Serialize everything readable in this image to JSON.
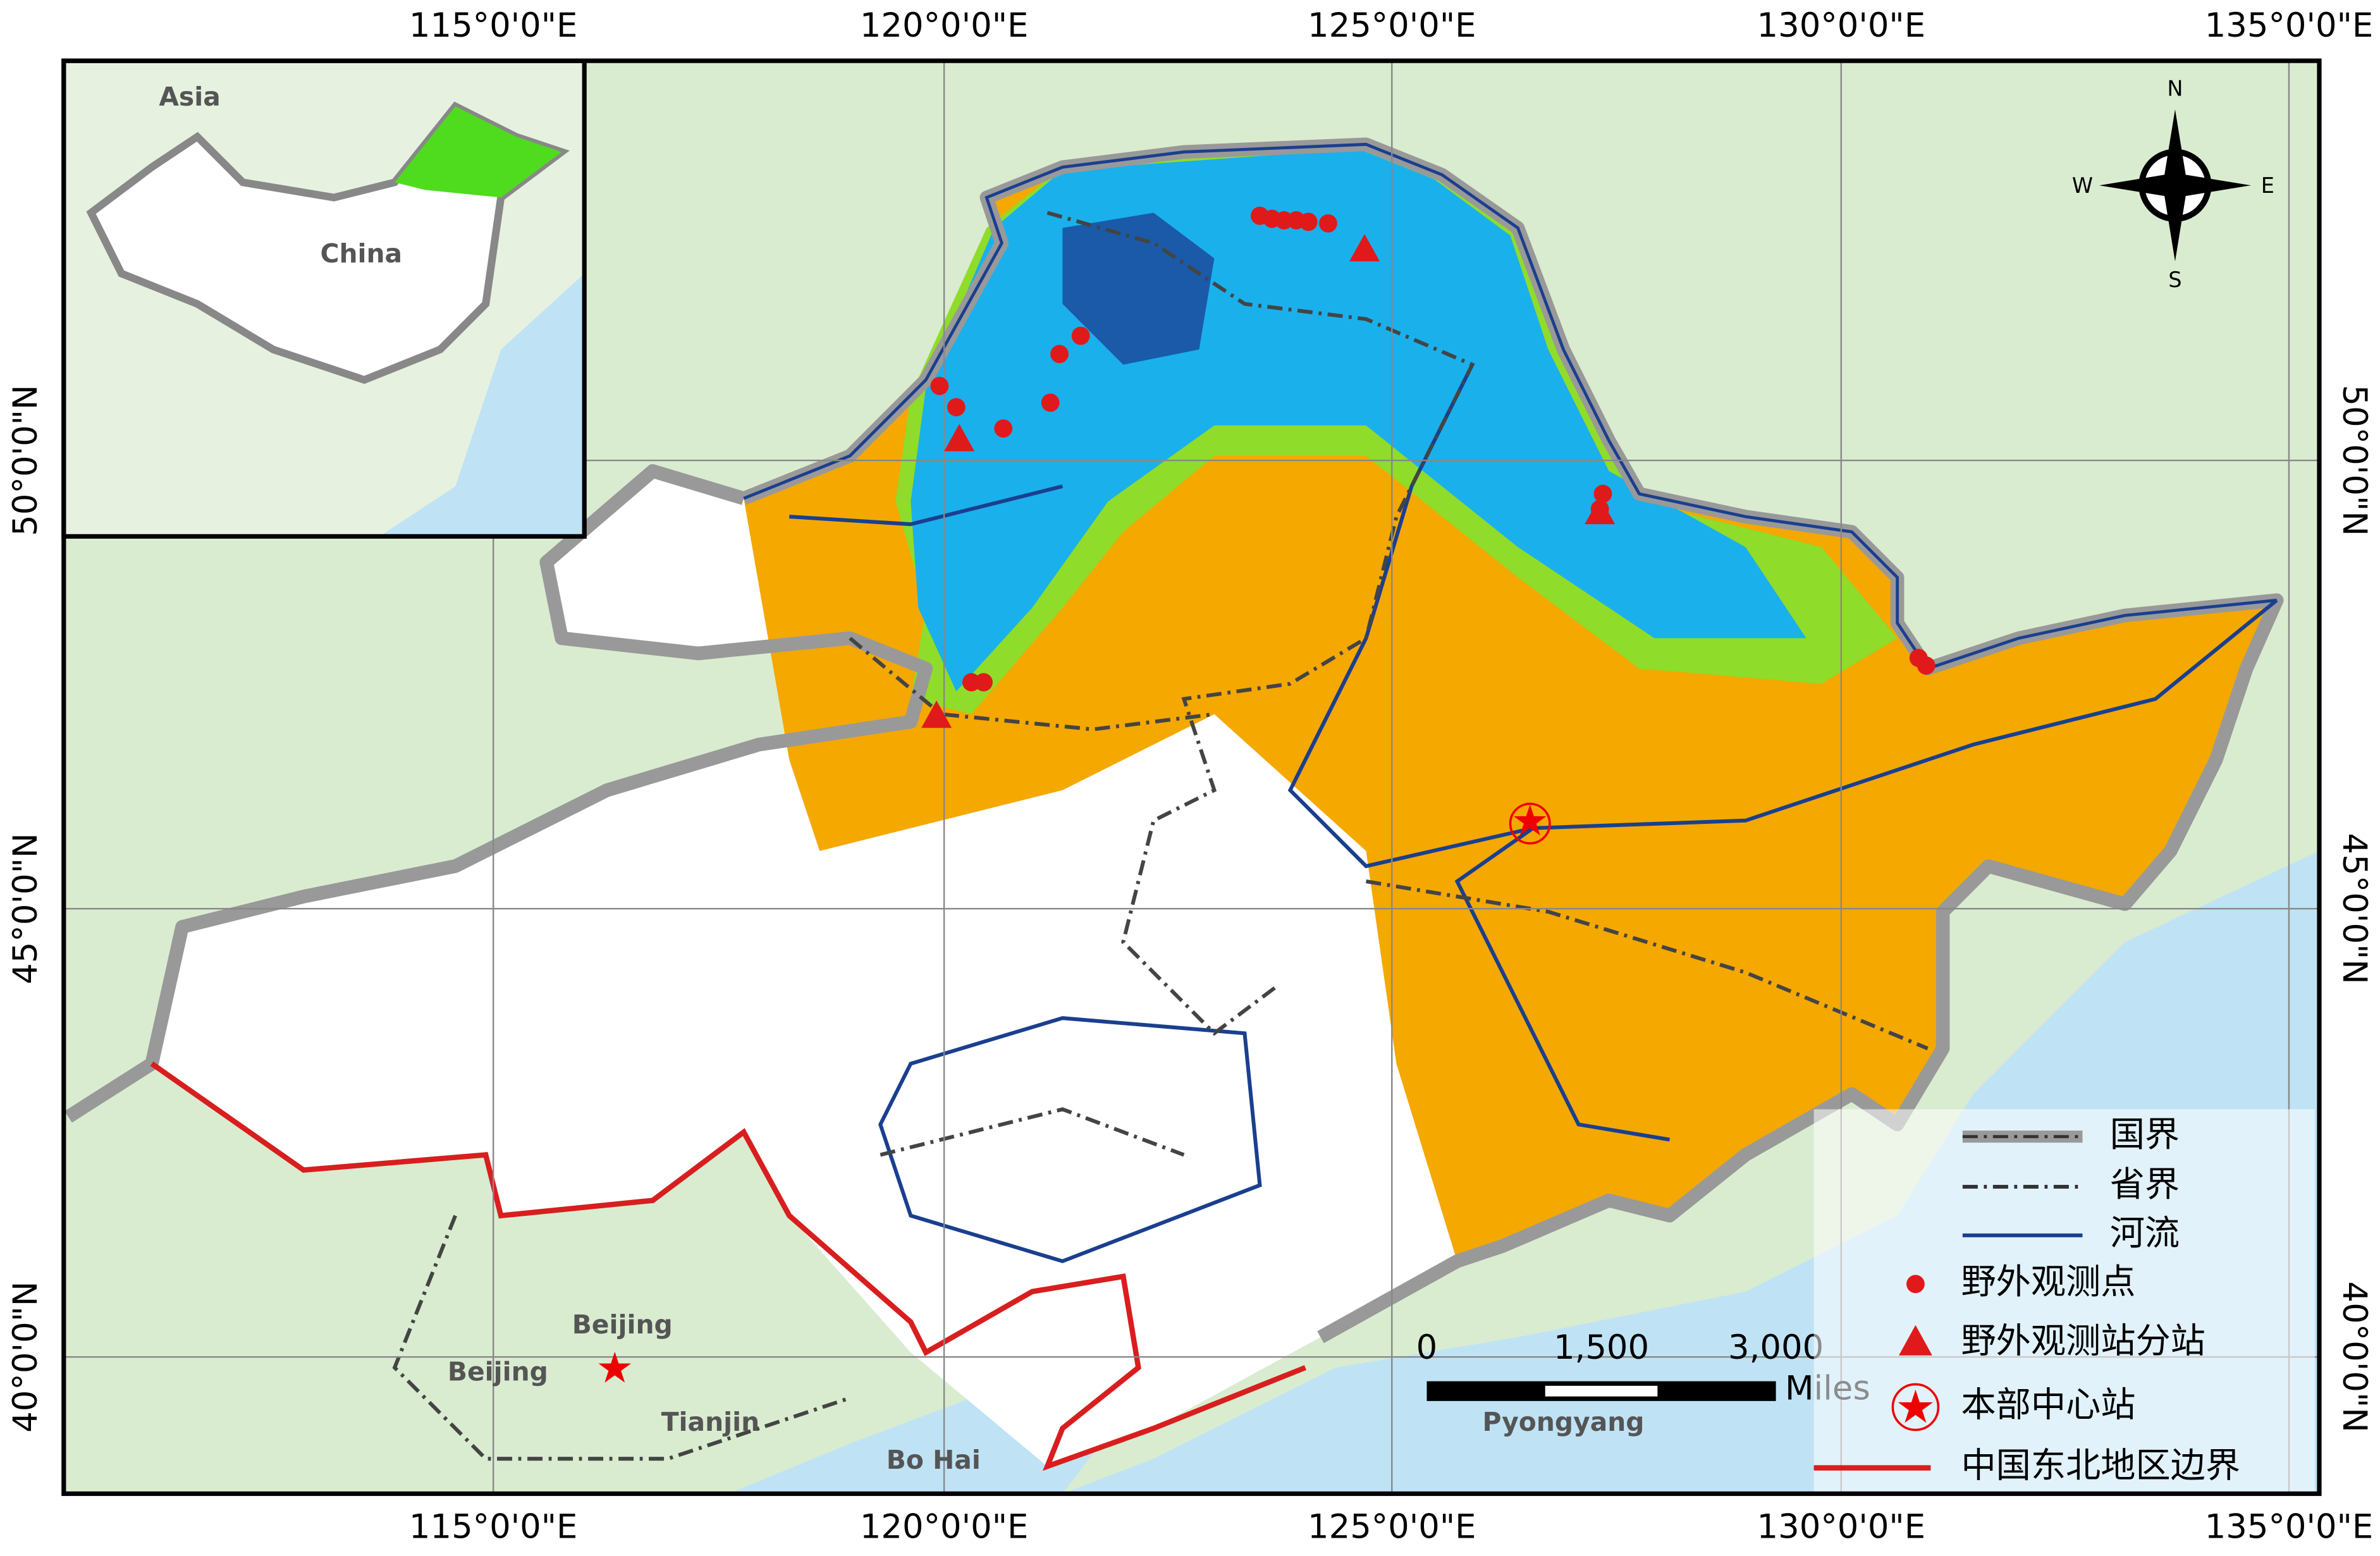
{
  "map": {
    "x_ticks": [
      "115°0'0\"E",
      "120°0'0\"E",
      "125°0'0\"E",
      "130°0'0\"E",
      "135°0'0\"E"
    ],
    "y_ticks": [
      "50°0'0\"N",
      "45°0'0\"N",
      "40°0'0\"N"
    ],
    "compass": {
      "n": "N",
      "s": "S",
      "e": "E",
      "w": "W"
    },
    "scale_bar": {
      "labels": [
        "0",
        "1,500",
        "3,000"
      ],
      "unit": "Miles"
    },
    "legend": [
      "国界",
      "省界",
      "河流",
      "野外观测点",
      "野外观测站分站",
      "本部中心站",
      "中国东北地区边界"
    ],
    "inset_labels": [
      "Asia",
      "China"
    ],
    "place_labels": [
      "Beijing",
      "Beijing",
      "Tianjin",
      "Bo Hai",
      "Pyongyang"
    ]
  }
}
